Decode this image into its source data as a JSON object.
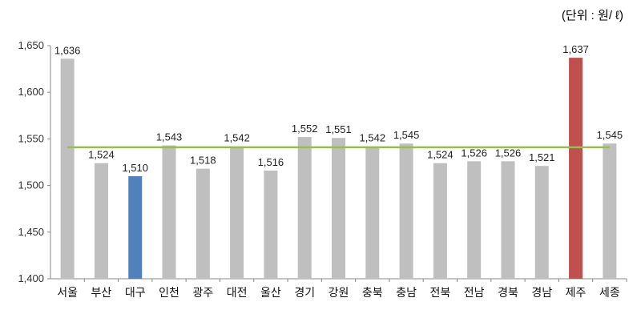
{
  "unit_label": "(단위 : 원/ ℓ)",
  "chart_data": {
    "type": "bar",
    "title": "",
    "xlabel": "",
    "ylabel": "",
    "categories": [
      "서울",
      "부산",
      "대구",
      "인천",
      "광주",
      "대전",
      "울산",
      "경기",
      "강원",
      "충북",
      "충남",
      "전북",
      "전남",
      "경북",
      "경남",
      "제주",
      "세종"
    ],
    "values": [
      1636,
      1524,
      1510,
      1543,
      1518,
      1542,
      1516,
      1552,
      1551,
      1542,
      1545,
      1524,
      1526,
      1526,
      1521,
      1637,
      1545
    ],
    "data_labels": [
      "1,636",
      "1,524",
      "1,510",
      "1,543",
      "1,518",
      "1,542",
      "1,516",
      "1,552",
      "1,551",
      "1,542",
      "1,545",
      "1,524",
      "1,526",
      "1,526",
      "1,521",
      "1,637",
      "1,545"
    ],
    "ylim": [
      1400,
      1650
    ],
    "yticks": [
      1400,
      1450,
      1500,
      1550,
      1600,
      1650
    ],
    "ytick_labels": [
      "1,400",
      "1,450",
      "1,500",
      "1,550",
      "1,600",
      "1,650"
    ],
    "average_line": 1541,
    "grid": false,
    "colors": {
      "default": "#bfbfbf",
      "highlight_low": "#4f81bd",
      "highlight_high": "#c0504d",
      "average_line": "#9bbb59"
    },
    "highlights": {
      "대구": "highlight_low",
      "제주": "highlight_high"
    }
  }
}
